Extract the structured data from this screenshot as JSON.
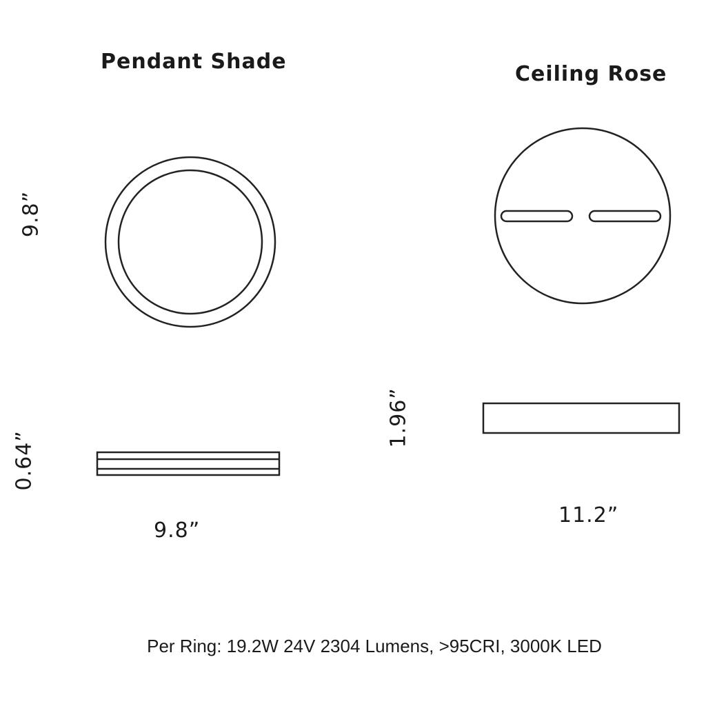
{
  "pendant": {
    "title": "Pendant Shade",
    "height_label": "9.8”",
    "thickness_label": "0.64”",
    "width_label": "9.8”"
  },
  "ceiling_rose": {
    "title": "Ceiling Rose",
    "height_label": "1.96”",
    "width_label": "11.2”"
  },
  "spec_text": "Per Ring: 19.2W 24V 2304 Lumens, >95CRI, 3000K LED",
  "line_color": "#222222"
}
